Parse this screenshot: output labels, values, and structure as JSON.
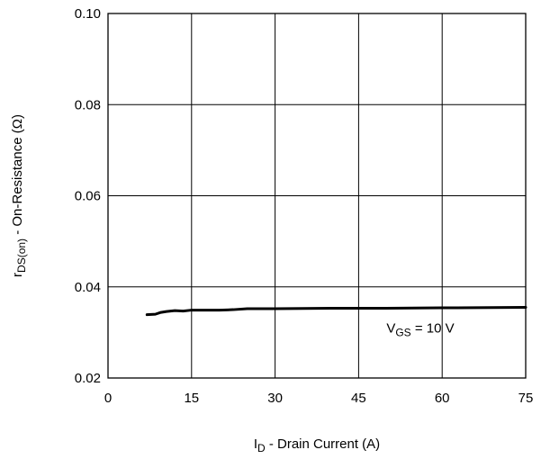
{
  "chart_data": {
    "type": "line",
    "xlabel": {
      "main": "I",
      "sub": "D",
      "rest": " - Drain Current (A)"
    },
    "ylabel": {
      "main": "r",
      "sub": "DS(on)",
      "rest": " - On-Resistance (Ω)"
    },
    "xlim": [
      0,
      75
    ],
    "ylim": [
      0.02,
      0.1
    ],
    "xticks": [
      0,
      15,
      30,
      45,
      60,
      75
    ],
    "yticks": [
      0.02,
      0.04,
      0.06,
      0.08,
      0.1
    ],
    "xtick_labels": [
      "0",
      "15",
      "30",
      "45",
      "60",
      "75"
    ],
    "ytick_labels": [
      "0.02",
      "0.04",
      "0.06",
      "0.08",
      "0.10"
    ],
    "grid": true,
    "series": [
      {
        "annotation": {
          "main": "V",
          "sub": "GS",
          "rest": " = 10 V"
        },
        "x": [
          7,
          8.5,
          9.5,
          10.5,
          12,
          13.5,
          15,
          17,
          20,
          22.5,
          25,
          30,
          40,
          50,
          60,
          75
        ],
        "y": [
          0.0339,
          0.034,
          0.0344,
          0.0346,
          0.0348,
          0.0347,
          0.0349,
          0.0349,
          0.0349,
          0.035,
          0.0352,
          0.0352,
          0.0353,
          0.0353,
          0.0354,
          0.0355
        ]
      }
    ],
    "annotation_position": {
      "x": 50,
      "y": 0.03
    }
  }
}
